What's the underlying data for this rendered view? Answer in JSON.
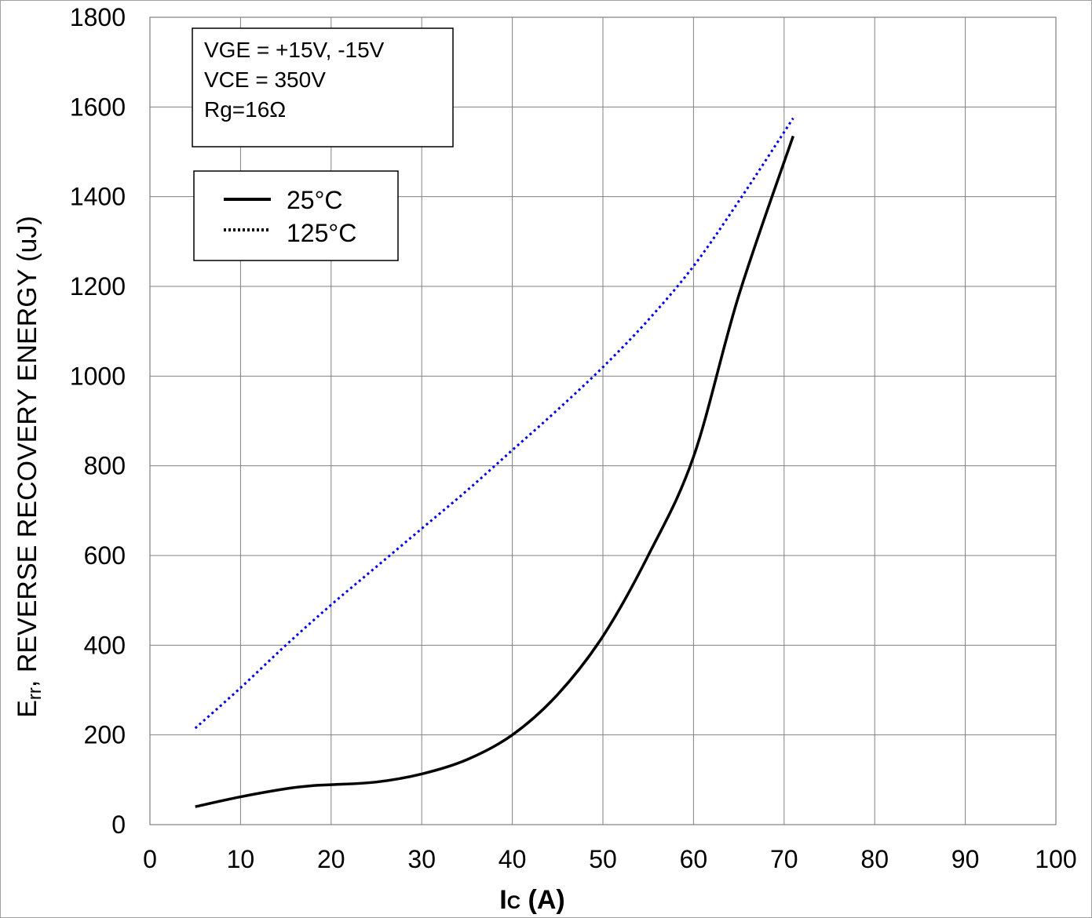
{
  "chart_data": {
    "type": "line",
    "title": "",
    "xlabel": "Ic (A)",
    "xlabel_main": "I",
    "xlabel_sub": "C",
    "xlabel_unit": " (A)",
    "ylabel": "Err, REVERSE RECOVERY ENERGY (uJ)",
    "ylabel_main": "E",
    "ylabel_sub": "rr",
    "ylabel_rest": ", REVERSE RECOVERY ENERGY (uJ)",
    "xlim": [
      0,
      100
    ],
    "ylim": [
      0,
      1800
    ],
    "xticks": [
      "0",
      "10",
      "20",
      "30",
      "40",
      "50",
      "60",
      "70",
      "80",
      "90",
      "100"
    ],
    "yticks": [
      "0",
      "200",
      "400",
      "600",
      "800",
      "1000",
      "1200",
      "1400",
      "1600",
      "1800"
    ],
    "grid": true,
    "conditions": [
      "VGE = +15V, -15V",
      "VCE = 350V",
      "Rg=16Ω"
    ],
    "series": [
      {
        "name": "25°C",
        "style": "solid",
        "color": "#000000",
        "x": [
          5,
          10,
          15,
          18,
          20,
          25,
          30,
          35,
          40,
          45,
          50,
          55,
          60,
          65,
          71
        ],
        "y": [
          40,
          62,
          80,
          87,
          89,
          95,
          113,
          145,
          200,
          290,
          420,
          600,
          820,
          1180,
          1535
        ]
      },
      {
        "name": "125°C",
        "style": "dotted",
        "color": "#0000ee",
        "x": [
          5,
          10,
          15,
          20,
          25,
          30,
          35,
          40,
          45,
          50,
          55,
          60,
          65,
          71
        ],
        "y": [
          215,
          305,
          400,
          490,
          575,
          660,
          745,
          835,
          925,
          1020,
          1125,
          1245,
          1390,
          1575
        ]
      }
    ],
    "legend_position": "top-left"
  }
}
